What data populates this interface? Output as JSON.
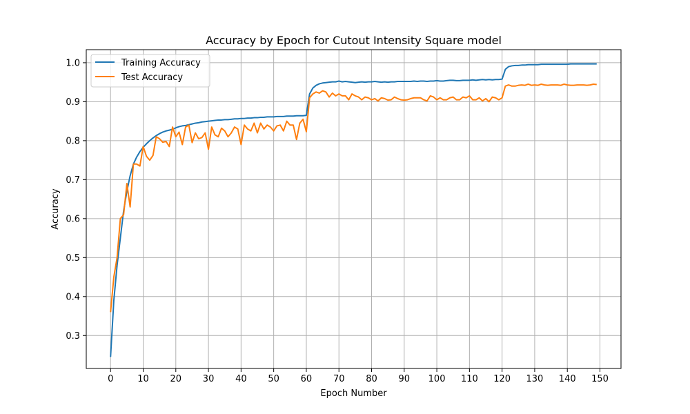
{
  "chart_data": {
    "type": "line",
    "title": "Accuracy by Epoch for Cutout Intensity Square model",
    "xlabel": "Epoch Number",
    "ylabel": "Accuracy",
    "xlim": [
      -7.45,
      156.45
    ],
    "ylim": [
      0.2155,
      1.0335
    ],
    "xticks": [
      0,
      10,
      20,
      30,
      40,
      50,
      60,
      70,
      80,
      90,
      100,
      110,
      120,
      130,
      140,
      150
    ],
    "yticks": [
      0.3,
      0.4,
      0.5,
      0.6,
      0.7,
      0.8,
      0.9,
      1.0
    ],
    "grid": true,
    "legend_position": "top-left",
    "x": [
      0,
      1,
      2,
      3,
      4,
      5,
      6,
      7,
      8,
      9,
      10,
      11,
      12,
      13,
      14,
      15,
      16,
      17,
      18,
      19,
      20,
      21,
      22,
      23,
      24,
      25,
      26,
      27,
      28,
      29,
      30,
      31,
      32,
      33,
      34,
      35,
      36,
      37,
      38,
      39,
      40,
      41,
      42,
      43,
      44,
      45,
      46,
      47,
      48,
      49,
      50,
      51,
      52,
      53,
      54,
      55,
      56,
      57,
      58,
      59,
      60,
      61,
      62,
      63,
      64,
      65,
      66,
      67,
      68,
      69,
      70,
      71,
      72,
      73,
      74,
      75,
      76,
      77,
      78,
      79,
      80,
      81,
      82,
      83,
      84,
      85,
      86,
      87,
      88,
      89,
      90,
      91,
      92,
      93,
      94,
      95,
      96,
      97,
      98,
      99,
      100,
      101,
      102,
      103,
      104,
      105,
      106,
      107,
      108,
      109,
      110,
      111,
      112,
      113,
      114,
      115,
      116,
      117,
      118,
      119,
      120,
      121,
      122,
      123,
      124,
      125,
      126,
      127,
      128,
      129,
      130,
      131,
      132,
      133,
      134,
      135,
      136,
      137,
      138,
      139,
      140,
      141,
      142,
      143,
      144,
      145,
      146,
      147,
      148,
      149
    ],
    "series": [
      {
        "name": "Training Accuracy",
        "color": "#1f77b4",
        "values": [
          0.245,
          0.39,
          0.48,
          0.55,
          0.62,
          0.67,
          0.71,
          0.74,
          0.758,
          0.772,
          0.783,
          0.792,
          0.8,
          0.807,
          0.813,
          0.818,
          0.822,
          0.825,
          0.827,
          0.829,
          0.833,
          0.836,
          0.838,
          0.839,
          0.841,
          0.843,
          0.845,
          0.846,
          0.848,
          0.849,
          0.85,
          0.851,
          0.852,
          0.853,
          0.853,
          0.854,
          0.854,
          0.855,
          0.856,
          0.856,
          0.857,
          0.857,
          0.858,
          0.858,
          0.859,
          0.859,
          0.86,
          0.86,
          0.861,
          0.861,
          0.861,
          0.862,
          0.862,
          0.862,
          0.863,
          0.863,
          0.863,
          0.864,
          0.864,
          0.864,
          0.865,
          0.92,
          0.935,
          0.942,
          0.946,
          0.948,
          0.949,
          0.95,
          0.951,
          0.951,
          0.953,
          0.951,
          0.952,
          0.951,
          0.95,
          0.949,
          0.95,
          0.951,
          0.95,
          0.951,
          0.951,
          0.952,
          0.951,
          0.95,
          0.951,
          0.95,
          0.951,
          0.951,
          0.952,
          0.952,
          0.952,
          0.952,
          0.952,
          0.953,
          0.952,
          0.953,
          0.953,
          0.952,
          0.953,
          0.953,
          0.954,
          0.953,
          0.953,
          0.954,
          0.955,
          0.955,
          0.954,
          0.954,
          0.955,
          0.955,
          0.955,
          0.956,
          0.955,
          0.956,
          0.957,
          0.956,
          0.957,
          0.956,
          0.957,
          0.957,
          0.958,
          0.983,
          0.99,
          0.992,
          0.993,
          0.993,
          0.994,
          0.994,
          0.995,
          0.995,
          0.995,
          0.995,
          0.996,
          0.996,
          0.996,
          0.996,
          0.996,
          0.996,
          0.996,
          0.996,
          0.996,
          0.997,
          0.997,
          0.997,
          0.997,
          0.997,
          0.997,
          0.997,
          0.997,
          0.997
        ]
      },
      {
        "name": "Test Accuracy",
        "color": "#ff7f0e",
        "values": [
          0.36,
          0.45,
          0.5,
          0.6,
          0.61,
          0.69,
          0.63,
          0.74,
          0.74,
          0.735,
          0.785,
          0.76,
          0.75,
          0.762,
          0.81,
          0.805,
          0.796,
          0.798,
          0.785,
          0.835,
          0.81,
          0.822,
          0.79,
          0.835,
          0.84,
          0.795,
          0.82,
          0.805,
          0.808,
          0.82,
          0.778,
          0.835,
          0.815,
          0.81,
          0.832,
          0.825,
          0.81,
          0.82,
          0.835,
          0.83,
          0.79,
          0.84,
          0.83,
          0.825,
          0.845,
          0.82,
          0.845,
          0.83,
          0.84,
          0.835,
          0.825,
          0.838,
          0.84,
          0.825,
          0.85,
          0.84,
          0.84,
          0.803,
          0.845,
          0.855,
          0.823,
          0.91,
          0.92,
          0.925,
          0.922,
          0.928,
          0.925,
          0.912,
          0.922,
          0.915,
          0.92,
          0.915,
          0.915,
          0.905,
          0.92,
          0.915,
          0.912,
          0.905,
          0.912,
          0.91,
          0.905,
          0.908,
          0.902,
          0.91,
          0.908,
          0.904,
          0.905,
          0.912,
          0.908,
          0.905,
          0.904,
          0.905,
          0.908,
          0.91,
          0.91,
          0.91,
          0.905,
          0.902,
          0.915,
          0.912,
          0.905,
          0.91,
          0.905,
          0.905,
          0.91,
          0.912,
          0.905,
          0.905,
          0.912,
          0.91,
          0.915,
          0.905,
          0.905,
          0.91,
          0.902,
          0.908,
          0.9,
          0.912,
          0.91,
          0.905,
          0.91,
          0.94,
          0.943,
          0.94,
          0.94,
          0.942,
          0.943,
          0.942,
          0.945,
          0.942,
          0.943,
          0.942,
          0.945,
          0.943,
          0.942,
          0.943,
          0.943,
          0.943,
          0.942,
          0.945,
          0.943,
          0.942,
          0.942,
          0.943,
          0.943,
          0.943,
          0.942,
          0.943,
          0.945,
          0.944
        ]
      }
    ]
  }
}
